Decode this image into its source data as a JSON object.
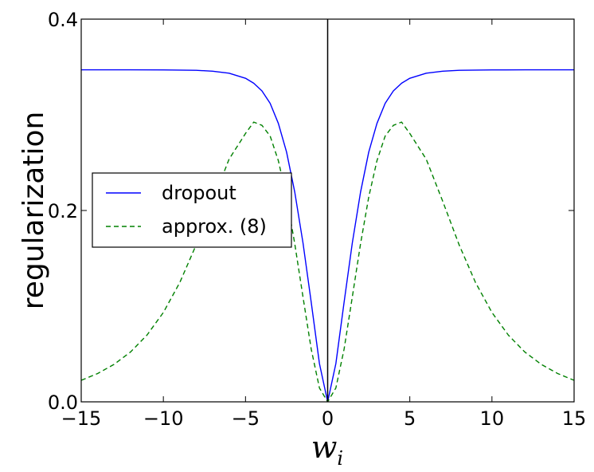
{
  "chart_data": {
    "type": "line",
    "xlabel": "w",
    "xlabel_subscript": "i",
    "ylabel": "regularization",
    "xlim": [
      -15,
      15
    ],
    "ylim": [
      0,
      0.4
    ],
    "xticks": [
      -15,
      -10,
      -5,
      0,
      5,
      10,
      15
    ],
    "xtick_labels": [
      "−15",
      "−10",
      "−5",
      "0",
      "5",
      "10",
      "15"
    ],
    "yticks": [
      0.0,
      0.2,
      0.4
    ],
    "ytick_labels": [
      "0.0",
      "0.2",
      "0.4"
    ],
    "vline_x": 0,
    "vline_color": "#000000",
    "legend_position": "center-left",
    "series": [
      {
        "name": "dropout",
        "color": "#0000ff",
        "dash": "solid",
        "x": [
          -15,
          -12,
          -10,
          -8,
          -7,
          -6,
          -5,
          -4.5,
          -4,
          -3.5,
          -3,
          -2.5,
          -2,
          -1.5,
          -1,
          -0.5,
          0,
          0.5,
          1,
          1.5,
          2,
          2.5,
          3,
          3.5,
          4,
          4.5,
          5,
          6,
          7,
          8,
          10,
          12,
          15
        ],
        "y": [
          0.347,
          0.347,
          0.3469,
          0.3465,
          0.3456,
          0.3435,
          0.3382,
          0.333,
          0.325,
          0.312,
          0.291,
          0.261,
          0.219,
          0.166,
          0.104,
          0.04,
          0.0,
          0.04,
          0.104,
          0.166,
          0.219,
          0.261,
          0.291,
          0.312,
          0.325,
          0.333,
          0.3382,
          0.3435,
          0.3456,
          0.3465,
          0.3469,
          0.347,
          0.347
        ]
      },
      {
        "name": "approx. (8)",
        "color": "#008000",
        "dash": "dashed",
        "x": [
          -15,
          -14,
          -13,
          -12,
          -11,
          -10,
          -9,
          -8,
          -7,
          -6,
          -5,
          -4.5,
          -4,
          -3.5,
          -3,
          -2.5,
          -2,
          -1.5,
          -1,
          -0.5,
          0,
          0.5,
          1,
          1.5,
          2,
          2.5,
          3,
          3.5,
          4,
          4.5,
          5,
          6,
          7,
          8,
          9,
          10,
          11,
          12,
          13,
          14,
          15
        ],
        "y": [
          0.0225,
          0.0296,
          0.0392,
          0.0521,
          0.0697,
          0.0934,
          0.1247,
          0.1642,
          0.2098,
          0.2536,
          0.2805,
          0.2924,
          0.289,
          0.2778,
          0.252,
          0.214,
          0.165,
          0.1095,
          0.055,
          0.0145,
          0.0,
          0.0145,
          0.055,
          0.1095,
          0.165,
          0.214,
          0.252,
          0.2778,
          0.289,
          0.2924,
          0.2805,
          0.2536,
          0.2098,
          0.1642,
          0.1247,
          0.0934,
          0.0697,
          0.0521,
          0.0392,
          0.0296,
          0.0225
        ]
      }
    ]
  }
}
